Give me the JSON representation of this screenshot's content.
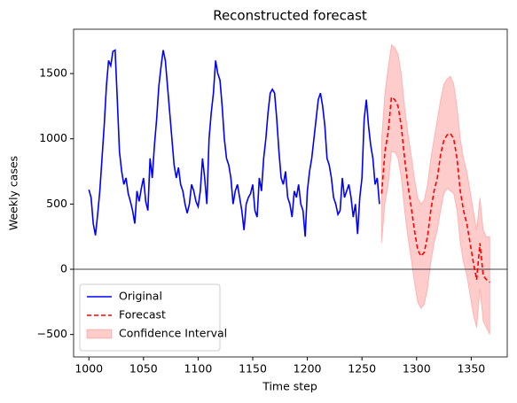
{
  "chart_data": {
    "type": "line",
    "title": "Reconstructed forecast",
    "xlabel": "Time step",
    "ylabel": "Weekly cases",
    "xlim": [
      986,
      1383
    ],
    "ylim": [
      -672,
      1840
    ],
    "xticks": [
      1000,
      1050,
      1100,
      1150,
      1200,
      1250,
      1300,
      1350
    ],
    "yticks": [
      {
        "value": -500,
        "label": "−500"
      },
      0,
      500,
      1000,
      1500
    ],
    "hline": 0,
    "legend": "lower left",
    "series": [
      {
        "name": "Original",
        "color": "#0000ff",
        "dashed": false,
        "x": [
          1000,
          1002,
          1004,
          1006,
          1008,
          1010,
          1012,
          1014,
          1016,
          1018,
          1020,
          1022,
          1024,
          1026,
          1028,
          1030,
          1032,
          1034,
          1036,
          1038,
          1040,
          1042,
          1044,
          1046,
          1048,
          1050,
          1052,
          1054,
          1056,
          1058,
          1060,
          1062,
          1064,
          1066,
          1068,
          1070,
          1072,
          1074,
          1076,
          1078,
          1080,
          1082,
          1084,
          1086,
          1088,
          1090,
          1092,
          1094,
          1096,
          1098,
          1100,
          1102,
          1104,
          1106,
          1108,
          1110,
          1112,
          1114,
          1116,
          1118,
          1120,
          1122,
          1124,
          1126,
          1128,
          1130,
          1132,
          1134,
          1136,
          1138,
          1140,
          1142,
          1144,
          1146,
          1148,
          1150,
          1152,
          1154,
          1156,
          1158,
          1160,
          1162,
          1164,
          1166,
          1168,
          1170,
          1172,
          1174,
          1176,
          1178,
          1180,
          1182,
          1184,
          1186,
          1188,
          1190,
          1192,
          1194,
          1196,
          1198,
          1200,
          1202,
          1204,
          1206,
          1208,
          1210,
          1212,
          1214,
          1216,
          1218,
          1220,
          1222,
          1224,
          1226,
          1228,
          1230,
          1232,
          1234,
          1236,
          1238,
          1240,
          1242,
          1244,
          1246,
          1248,
          1250,
          1252,
          1254,
          1256,
          1258,
          1260,
          1262,
          1264,
          1266
        ],
        "values": [
          610,
          550,
          350,
          260,
          420,
          600,
          850,
          1100,
          1400,
          1600,
          1560,
          1670,
          1680,
          1300,
          900,
          750,
          650,
          700,
          580,
          520,
          450,
          350,
          600,
          520,
          620,
          700,
          520,
          450,
          850,
          700,
          950,
          1150,
          1400,
          1550,
          1680,
          1600,
          1400,
          1200,
          1000,
          800,
          700,
          780,
          650,
          600,
          500,
          430,
          500,
          650,
          600,
          520,
          480,
          600,
          850,
          700,
          500,
          1000,
          1200,
          1350,
          1600,
          1500,
          1450,
          1250,
          1000,
          850,
          800,
          700,
          500,
          600,
          650,
          550,
          450,
          300,
          500,
          550,
          580,
          650,
          450,
          400,
          700,
          600,
          850,
          1000,
          1200,
          1350,
          1380,
          1350,
          1150,
          900,
          700,
          650,
          750,
          550,
          500,
          400,
          600,
          550,
          650,
          500,
          450,
          250,
          600,
          750,
          850,
          1000,
          1150,
          1300,
          1350,
          1250,
          1100,
          850,
          800,
          700,
          550,
          500,
          420,
          450,
          700,
          550,
          600,
          650,
          550,
          400,
          500,
          270,
          550,
          700,
          1150,
          1300,
          1100,
          950,
          850,
          650,
          700,
          500
        ]
      },
      {
        "name": "Forecast",
        "color": "#ff0000",
        "dashed": true,
        "x": [
          1268,
          1271,
          1274,
          1277,
          1280,
          1283,
          1286,
          1289,
          1292,
          1295,
          1298,
          1301,
          1304,
          1307,
          1310,
          1313,
          1316,
          1319,
          1322,
          1325,
          1328,
          1331,
          1334,
          1337,
          1340,
          1343,
          1346,
          1349,
          1352,
          1355,
          1358,
          1361,
          1364,
          1367
        ],
        "values": [
          580,
          900,
          1050,
          1320,
          1300,
          1250,
          1100,
          850,
          650,
          480,
          300,
          150,
          100,
          130,
          250,
          450,
          600,
          700,
          880,
          990,
          1030,
          1040,
          1000,
          850,
          600,
          450,
          350,
          200,
          50,
          -80,
          200,
          -50,
          -80,
          -100
        ]
      }
    ],
    "band": {
      "name": "Confidence Interval",
      "color": "#ff0000",
      "opacity": 0.2,
      "x": [
        1268,
        1271,
        1274,
        1277,
        1280,
        1283,
        1286,
        1289,
        1292,
        1295,
        1298,
        1301,
        1304,
        1307,
        1310,
        1313,
        1316,
        1319,
        1322,
        1325,
        1328,
        1331,
        1334,
        1337,
        1340,
        1343,
        1346,
        1349,
        1352,
        1355,
        1358,
        1361,
        1364,
        1367
      ],
      "lower": [
        200,
        500,
        650,
        900,
        900,
        850,
        700,
        450,
        250,
        80,
        -100,
        -250,
        -300,
        -270,
        -150,
        50,
        200,
        300,
        450,
        580,
        620,
        600,
        580,
        450,
        200,
        50,
        -50,
        -200,
        -350,
        -450,
        -150,
        -400,
        -450,
        -500
      ],
      "upper": [
        1000,
        1350,
        1550,
        1720,
        1700,
        1650,
        1500,
        1250,
        1050,
        880,
        700,
        550,
        500,
        530,
        650,
        850,
        1000,
        1150,
        1300,
        1420,
        1460,
        1480,
        1420,
        1250,
        1000,
        850,
        750,
        600,
        450,
        300,
        550,
        300,
        250,
        250
      ]
    }
  }
}
